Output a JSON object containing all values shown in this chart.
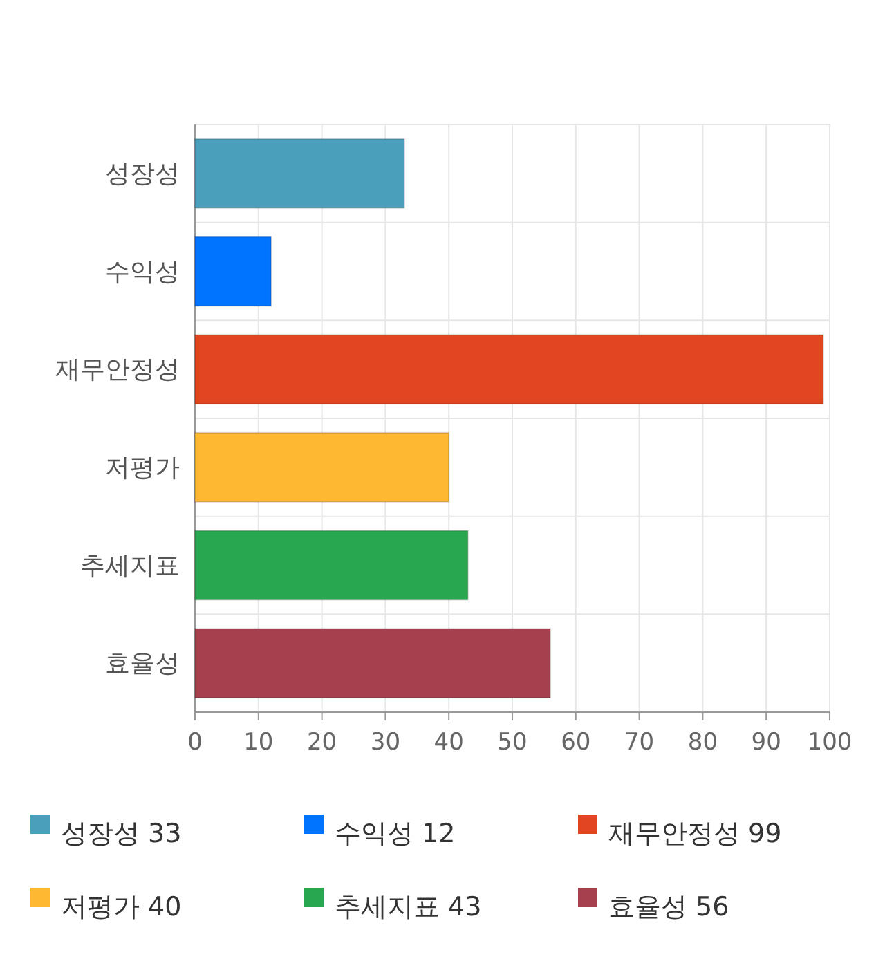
{
  "chart_data": [
    {
      "type": "bar",
      "orientation": "horizontal",
      "categories": [
        "성장성",
        "수익성",
        "재무안정성",
        "저평가",
        "추세지표",
        "효율성"
      ],
      "values": [
        33,
        12,
        99,
        40,
        43,
        56
      ],
      "colors": [
        "#4aa0ba",
        "#0074ff",
        "#e24522",
        "#feb831",
        "#29a650",
        "#a6404f"
      ],
      "xlim": [
        0,
        100
      ],
      "xticks": [
        0,
        10,
        20,
        30,
        40,
        50,
        60,
        70,
        80,
        90,
        100
      ],
      "grid": true
    },
    {
      "type": "other",
      "annotations": [
        "성장성 33",
        "수익성 12",
        "재무안정성 99",
        "저평가 40",
        "추세지표 43",
        "효율성 56"
      ],
      "colors": [
        "#4aa0ba",
        "#0074ff",
        "#e24522",
        "#feb831",
        "#29a650",
        "#a6404f"
      ]
    }
  ]
}
